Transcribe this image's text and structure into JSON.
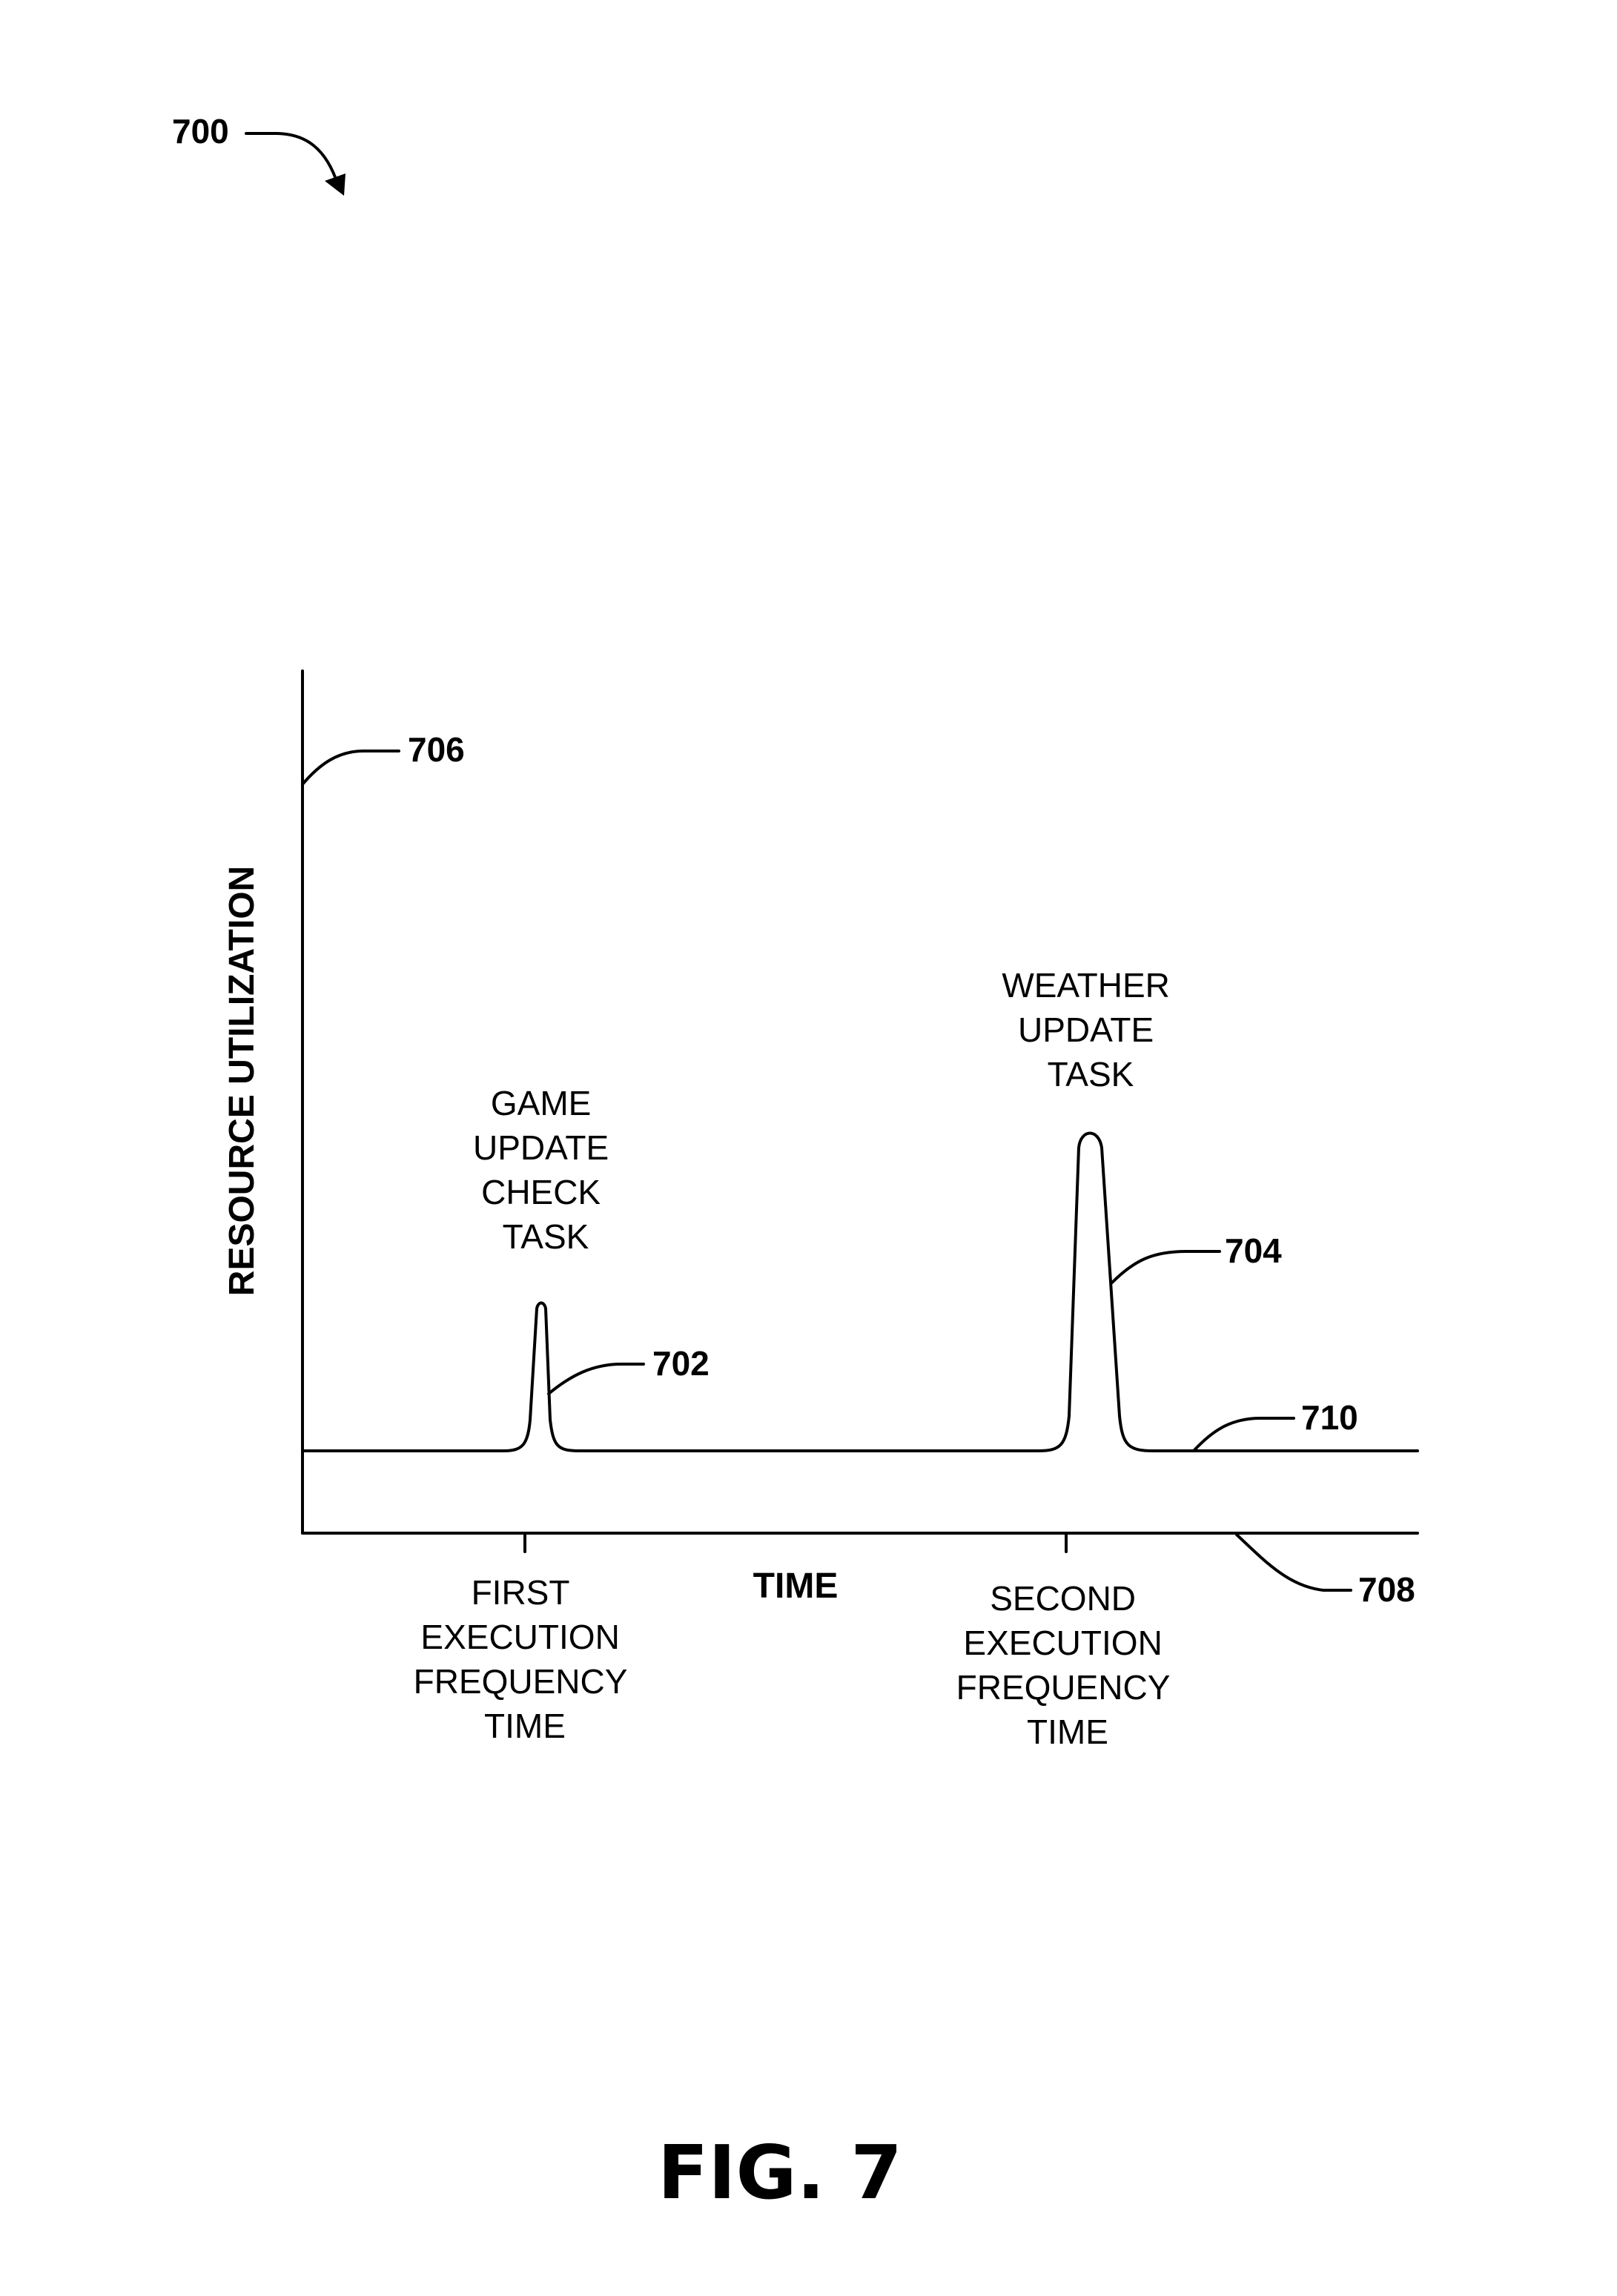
{
  "figure": {
    "number_ref": "700",
    "caption": "FIG. 7"
  },
  "axes": {
    "y_title": "RESOURCE UTILIZATION",
    "x_title": "TIME",
    "y_axis_ref": "706",
    "x_axis_ref": "708"
  },
  "curve": {
    "baseline_ref": "710",
    "peaks": [
      {
        "ref": "702",
        "label_lines": [
          "GAME",
          "UPDATE",
          "CHECK",
          "TASK"
        ]
      },
      {
        "ref": "704",
        "label_lines": [
          "WEATHER",
          "UPDATE",
          "TASK"
        ]
      }
    ]
  },
  "x_ticks": [
    {
      "label_lines": [
        "FIRST",
        "EXECUTION",
        "FREQUENCY",
        "TIME"
      ]
    },
    {
      "label_lines": [
        "SECOND",
        "EXECUTION",
        "FREQUENCY",
        "TIME"
      ]
    }
  ]
}
